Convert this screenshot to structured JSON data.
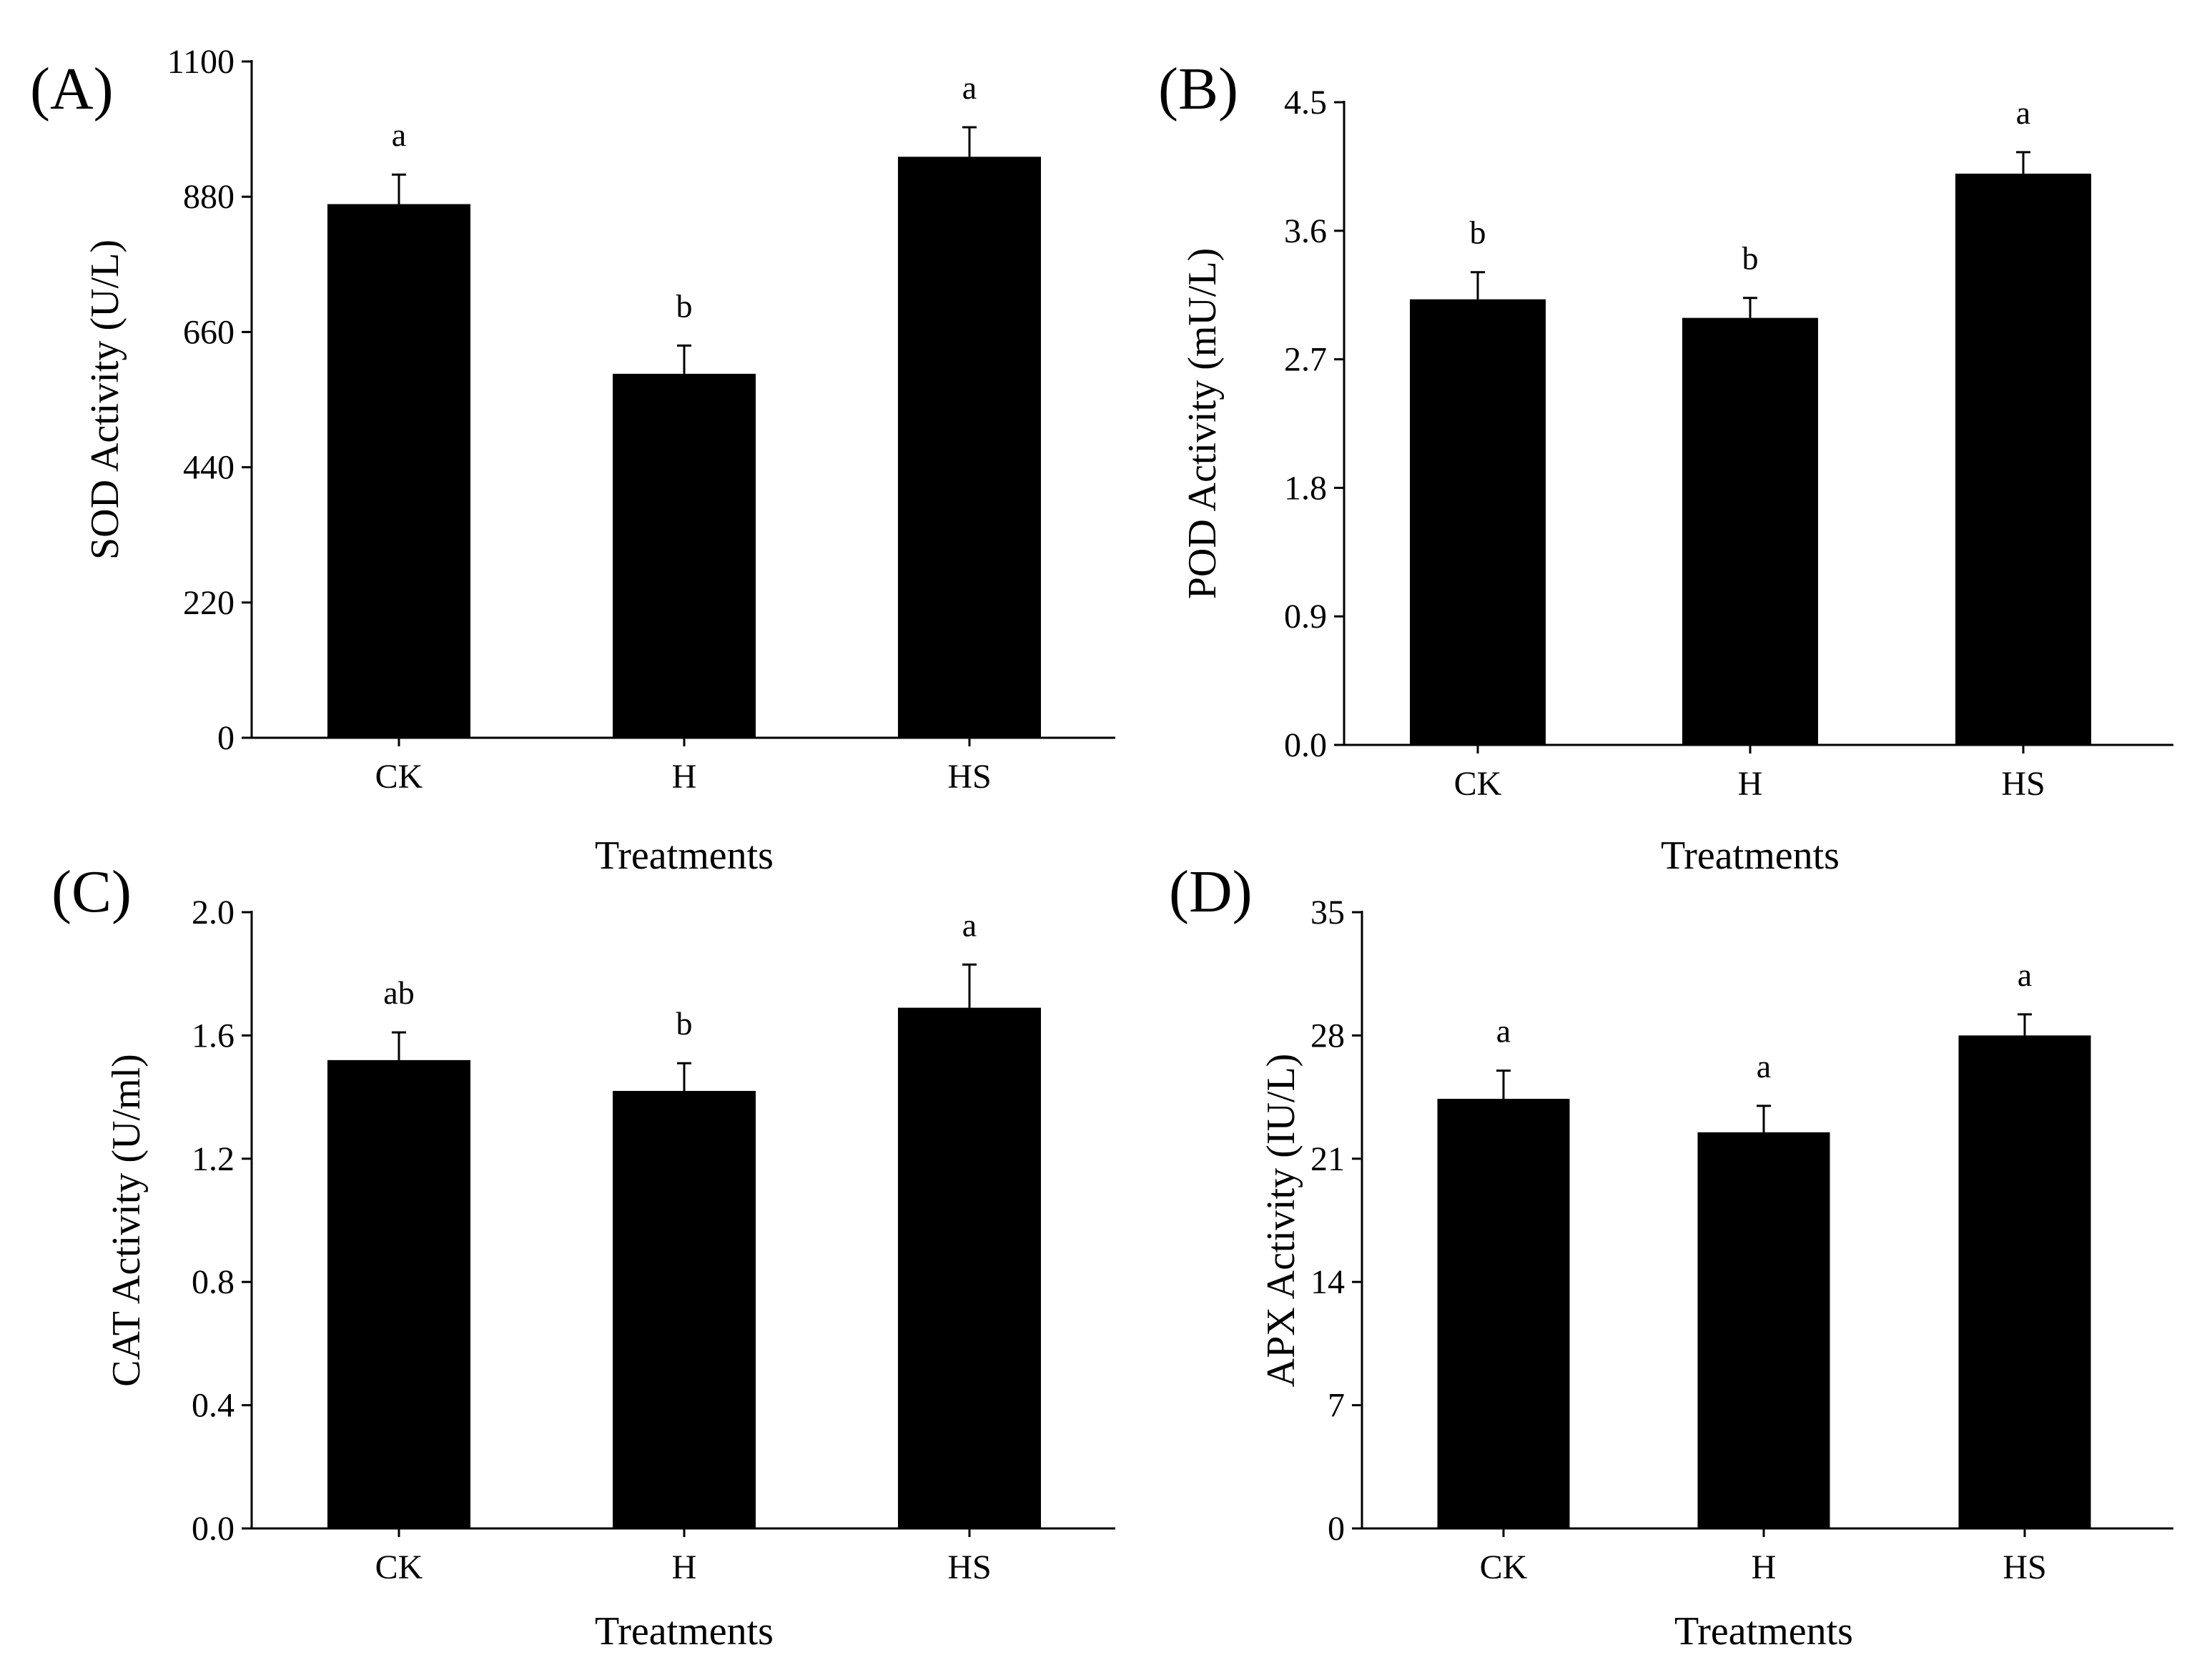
{
  "colors": {
    "bar": "#000000",
    "axis": "#000000",
    "background": "#ffffff"
  },
  "chart_data": [
    {
      "panel": "(A)",
      "type": "bar",
      "categories": [
        "CK",
        "H",
        "HS"
      ],
      "values": [
        868,
        592,
        945
      ],
      "errors": [
        48,
        46,
        48
      ],
      "significance": [
        "a",
        "b",
        "a"
      ],
      "xlabel": "Treatments",
      "ylabel": "SOD Activity (U/L)",
      "ylim": [
        0,
        1100
      ],
      "yticks": [
        0,
        220,
        440,
        660,
        880,
        1100
      ],
      "ytick_labels": [
        "0",
        "220",
        "440",
        "660",
        "880",
        "1100"
      ],
      "grid": false
    },
    {
      "panel": "(B)",
      "type": "bar",
      "categories": [
        "CK",
        "H",
        "HS"
      ],
      "values": [
        3.12,
        2.99,
        4.0
      ],
      "errors": [
        0.19,
        0.14,
        0.15
      ],
      "significance": [
        "b",
        "b",
        "a"
      ],
      "xlabel": "Treatments",
      "ylabel": "POD Activity (mU/L)",
      "ylim": [
        0,
        4.5
      ],
      "yticks": [
        0,
        0.9,
        1.8,
        2.7,
        3.6,
        4.5
      ],
      "ytick_labels": [
        "0.0",
        "0.9",
        "1.8",
        "2.7",
        "3.6",
        "4.5"
      ],
      "grid": false
    },
    {
      "panel": "(C)",
      "type": "bar",
      "categories": [
        "CK",
        "H",
        "HS"
      ],
      "values": [
        1.52,
        1.42,
        1.69
      ],
      "errors": [
        0.09,
        0.09,
        0.14
      ],
      "significance": [
        "ab",
        "b",
        "a"
      ],
      "xlabel": "Treatments",
      "ylabel": "CAT Activity (U/ml)",
      "ylim": [
        0,
        2.0
      ],
      "yticks": [
        0,
        0.4,
        0.8,
        1.2,
        1.6,
        2.0
      ],
      "ytick_labels": [
        "0.0",
        "0.4",
        "0.8",
        "1.2",
        "1.6",
        "2.0"
      ],
      "grid": false
    },
    {
      "panel": "(D)",
      "type": "bar",
      "categories": [
        "CK",
        "H",
        "HS"
      ],
      "values": [
        24.4,
        22.5,
        28.0
      ],
      "errors": [
        1.6,
        1.5,
        1.2
      ],
      "significance": [
        "a",
        "a",
        "a"
      ],
      "xlabel": "Treatments",
      "ylabel": "APX Activity (IU/L)",
      "ylim": [
        0,
        35
      ],
      "yticks": [
        0,
        7,
        14,
        21,
        28,
        35
      ],
      "ytick_labels": [
        "0",
        "7",
        "14",
        "21",
        "28",
        "35"
      ],
      "grid": false
    }
  ]
}
